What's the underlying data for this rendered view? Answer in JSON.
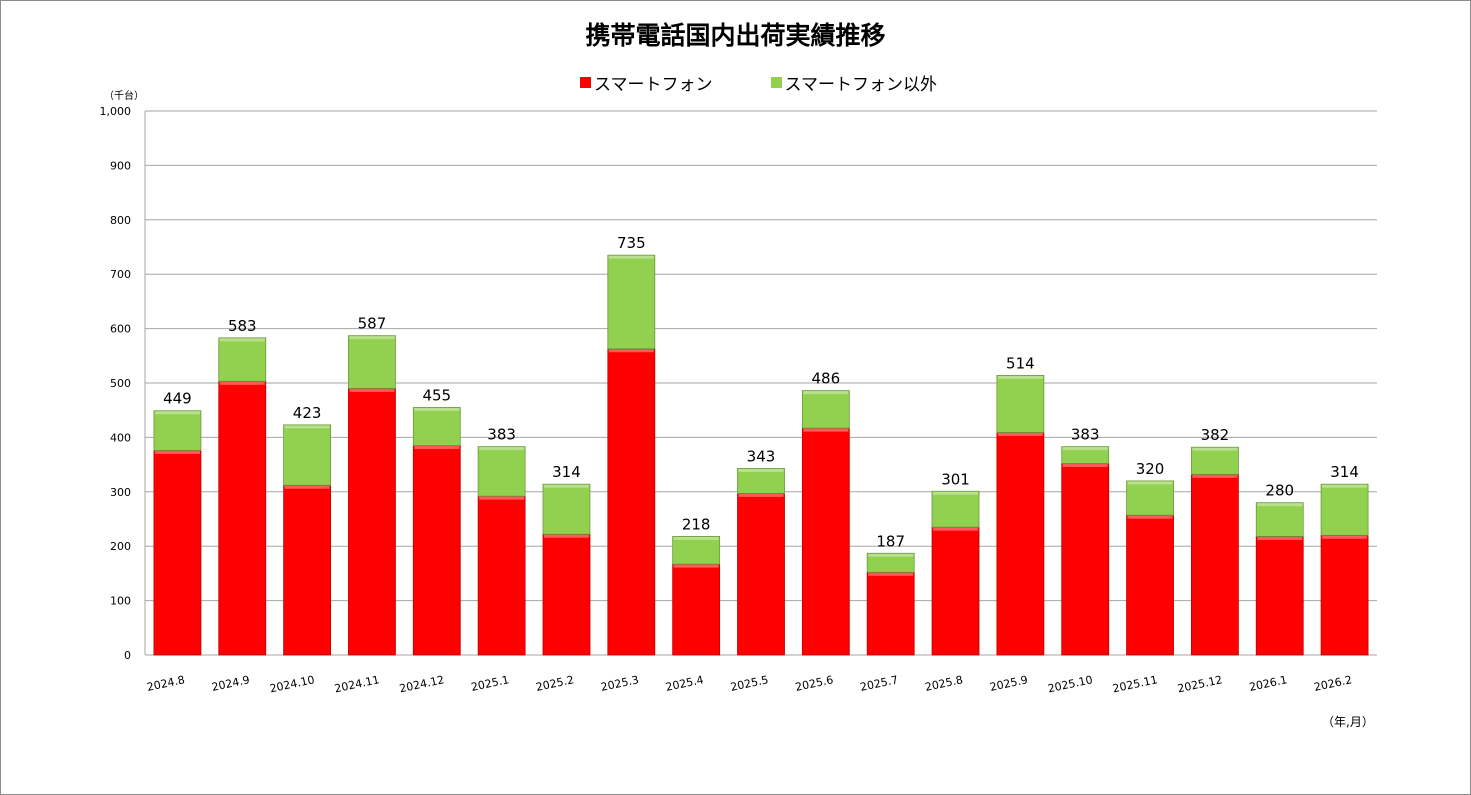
{
  "chart_data": {
    "type": "bar",
    "stacked": true,
    "title": "携帯電話国内出荷実績推移",
    "ylabel": "（千台）",
    "xlabel": "（年,月）",
    "ylim": [
      0,
      1000
    ],
    "yticks": [
      0,
      100,
      200,
      300,
      400,
      500,
      600,
      700,
      800,
      900,
      1000
    ],
    "ytick_labels": [
      "0",
      "100",
      "200",
      "300",
      "400",
      "500",
      "600",
      "700",
      "800",
      "900",
      "1,000"
    ],
    "grid": true,
    "legend_position": "top",
    "categories": [
      "2024.8",
      "2024.9",
      "2024.10",
      "2024.11",
      "2024.12",
      "2025.1",
      "2025.2",
      "2025.3",
      "2025.4",
      "2025.5",
      "2025.6",
      "2025.7",
      "2025.8",
      "2025.9",
      "2025.10",
      "2025.11",
      "2025.12",
      "2026.1",
      "2026.2"
    ],
    "series": [
      {
        "name": "スマートフォン",
        "color": "#ff0000",
        "values": [
          376,
          503,
          312,
          490,
          385,
          292,
          222,
          563,
          167,
          297,
          417,
          152,
          235,
          409,
          352,
          257,
          332,
          218,
          220
        ]
      },
      {
        "name": "スマートフォン以外",
        "color": "#92d050",
        "values": [
          73,
          80,
          111,
          97,
          70,
          91,
          92,
          172,
          51,
          46,
          69,
          35,
          66,
          105,
          31,
          63,
          50,
          62,
          94
        ]
      }
    ],
    "totals": [
      449,
      583,
      423,
      587,
      455,
      383,
      314,
      735,
      218,
      343,
      486,
      187,
      301,
      514,
      383,
      320,
      382,
      280,
      314
    ]
  }
}
